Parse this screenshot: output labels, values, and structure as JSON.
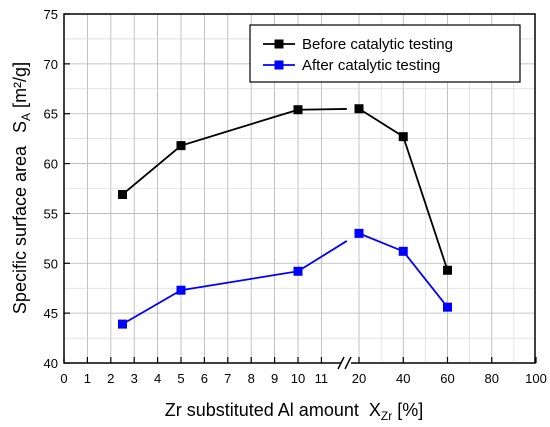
{
  "chart_data": {
    "type": "line",
    "xlabel": "Zr substituted Al amount",
    "xlabel_symbol": "X",
    "xlabel_subscript": "Zr",
    "xlabel_unit": "[%]",
    "ylabel": "Specific surface area",
    "ylabel_symbol": "S",
    "ylabel_subscript": "A",
    "ylabel_unit": "[m²/g]",
    "ylim": [
      40,
      75
    ],
    "y_ticks": [
      "40",
      "45",
      "50",
      "55",
      "60",
      "65",
      "70",
      "75"
    ],
    "x_axis_broken": true,
    "x_segments": [
      {
        "range": [
          0,
          12
        ],
        "ticks": [
          "0",
          "1",
          "2",
          "3",
          "4",
          "5",
          "6",
          "7",
          "8",
          "9",
          "10",
          "11"
        ]
      },
      {
        "range": [
          20,
          100
        ],
        "ticks": [
          "20",
          "40",
          "60",
          "80",
          "100"
        ]
      }
    ],
    "grid": true,
    "legend_position": "top-right",
    "series": [
      {
        "name": "Before catalytic testing",
        "color": "#000000",
        "marker": "square",
        "x": [
          2.5,
          5,
          10,
          20,
          40,
          60
        ],
        "y": [
          56.9,
          61.8,
          65.4,
          65.5,
          62.7,
          49.3
        ]
      },
      {
        "name": "After catalytic testing",
        "color": "#0000ff",
        "marker": "square",
        "x": [
          2.5,
          5,
          10,
          20,
          40,
          60
        ],
        "y": [
          43.9,
          47.3,
          49.2,
          53.0,
          51.2,
          45.6
        ]
      }
    ]
  }
}
